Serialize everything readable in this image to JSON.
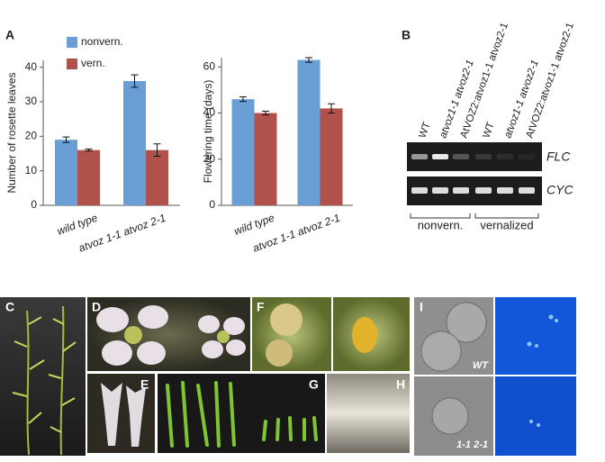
{
  "chart_data": [
    {
      "type": "bar",
      "y_label": "Number of rosette leaves",
      "categories": [
        "wild type",
        "atvoz 1-1 atvoz 2-1"
      ],
      "series": [
        {
          "name": "nonvern.",
          "color": "#6a9fd6",
          "values": [
            19,
            36
          ],
          "errors": [
            0.8,
            1.8
          ]
        },
        {
          "name": "vern.",
          "color": "#b0514c",
          "values": [
            16,
            16
          ],
          "errors": [
            0.3,
            1.8
          ]
        }
      ],
      "ylim": [
        0,
        42
      ],
      "yticks": [
        0,
        10,
        20,
        30,
        40
      ]
    },
    {
      "type": "bar",
      "y_label": "Flowering time (days)",
      "categories": [
        "wild type",
        "atvoz 1-1 atvoz 2-1"
      ],
      "series": [
        {
          "color": "#6a9fd6",
          "values": [
            46,
            63
          ],
          "errors": [
            1,
            1
          ]
        },
        {
          "color": "#b0514c",
          "values": [
            40,
            42
          ],
          "errors": [
            0.8,
            2
          ]
        }
      ],
      "ylim": [
        0,
        64
      ],
      "yticks": [
        0,
        20,
        40,
        60
      ]
    }
  ],
  "panel_labels": [
    "A",
    "B",
    "C",
    "D",
    "E",
    "F",
    "G",
    "H",
    "I"
  ],
  "gel": {
    "lanes": [
      "WT",
      "atvoz1-1 atvoz2-1",
      "AtVOZ2:atvoz1-1 atvoz2-1",
      "WT",
      "atvoz1-1 atvoz2-1",
      "AtVOZ2:atvoz1-1 atvoz2-1"
    ],
    "genes": [
      "FLC",
      "CYC"
    ],
    "groups": [
      "nonvern.",
      "vernalized"
    ]
  },
  "photo_labels": {
    "wild_type": "WT",
    "mutant": "1-1 2-1"
  }
}
